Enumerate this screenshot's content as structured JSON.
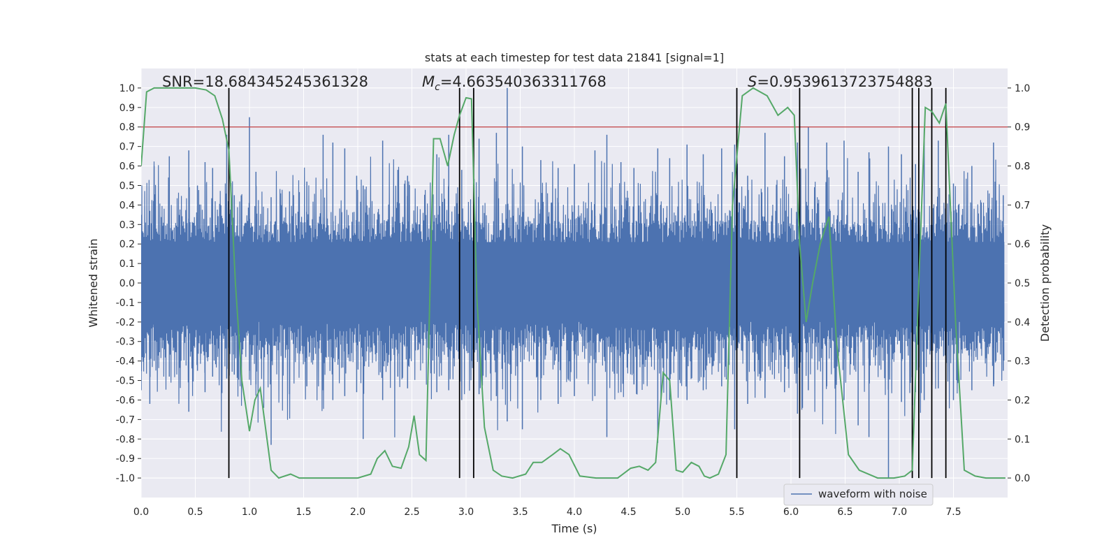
{
  "chart_data": {
    "type": "line",
    "title": "stats at each timestep for test data 21841 [signal=1]",
    "xlabel": "Time (s)",
    "ylabel_left": "Whitened strain",
    "ylabel_right": "Detection probability",
    "xlim": [
      0.0,
      8.0
    ],
    "ylim_left": [
      -1.1,
      1.1
    ],
    "ylim_right": [
      -0.05,
      1.05
    ],
    "x_ticks": [
      "0.0",
      "0.5",
      "1.0",
      "1.5",
      "2.0",
      "2.5",
      "3.0",
      "3.5",
      "4.0",
      "4.5",
      "5.0",
      "5.5",
      "6.0",
      "6.5",
      "7.0",
      "7.5"
    ],
    "y_ticks_left": [
      "1.0",
      "0.9",
      "0.8",
      "0.7",
      "0.6",
      "0.5",
      "0.4",
      "0.3",
      "0.2",
      "0.1",
      "0.0",
      "-0.1",
      "-0.2",
      "-0.3",
      "-0.4",
      "-0.5",
      "-0.6",
      "-0.7",
      "-0.8",
      "-0.9",
      "-1.0"
    ],
    "y_ticks_right": [
      "1.0",
      "0.9",
      "0.8",
      "0.7",
      "0.6",
      "0.5",
      "0.4",
      "0.3",
      "0.2",
      "0.1",
      "0.0"
    ],
    "grid": true,
    "legend_position": "bottom-right",
    "annotations": {
      "snr": "SNR=18.684345245361328",
      "mc_symbol": "M",
      "mc_sub": "c",
      "mc_value": "=4.663540363311768",
      "s_symbol": "S",
      "s_value": "=0.9539613723754883"
    },
    "threshold": {
      "value": 0.9,
      "axis": "right",
      "color": "#c44e52"
    },
    "vlines": [
      0.81,
      2.94,
      3.07,
      5.5,
      6.08,
      7.12,
      7.18,
      7.3,
      7.43
    ],
    "waveform": {
      "name": "waveform with noise",
      "color": "#4c72b0",
      "note": "dense noisy whitened strain; typical band about -0.4..0.4 with spikes",
      "spikes": [
        [
          0.0,
          0.35,
          -0.55
        ],
        [
          0.08,
          0.37,
          -0.62
        ],
        [
          0.12,
          0.6,
          -0.4
        ],
        [
          0.26,
          0.65,
          -0.48
        ],
        [
          0.44,
          0.68,
          -0.66
        ],
        [
          0.52,
          0.5,
          -0.45
        ],
        [
          0.59,
          0.62,
          -0.56
        ],
        [
          0.66,
          0.59,
          -0.48
        ],
        [
          0.79,
          0.76,
          -0.49
        ],
        [
          0.86,
          0.45,
          -0.47
        ],
        [
          1.0,
          0.85,
          -0.45
        ],
        [
          1.06,
          0.57,
          -0.52
        ],
        [
          1.2,
          0.44,
          -0.83
        ],
        [
          1.37,
          0.47,
          -0.57
        ],
        [
          1.53,
          0.52,
          -0.53
        ],
        [
          1.68,
          0.76,
          -0.55
        ],
        [
          1.77,
          0.72,
          -0.6
        ],
        [
          1.88,
          0.69,
          -0.58
        ],
        [
          1.99,
          0.55,
          -0.56
        ],
        [
          2.05,
          0.5,
          -0.8
        ],
        [
          2.23,
          0.73,
          -0.6
        ],
        [
          2.37,
          0.58,
          -0.48
        ],
        [
          2.46,
          0.55,
          -0.54
        ],
        [
          2.73,
          0.66,
          -0.56
        ],
        [
          2.84,
          0.76,
          -0.55
        ],
        [
          2.96,
          0.58,
          -0.6
        ],
        [
          3.12,
          0.74,
          -0.57
        ],
        [
          3.28,
          0.77,
          -0.58
        ],
        [
          3.38,
          1.0,
          -0.71
        ],
        [
          3.52,
          0.7,
          -0.75
        ],
        [
          3.69,
          0.63,
          -0.6
        ],
        [
          3.85,
          0.59,
          -0.62
        ],
        [
          4.0,
          0.61,
          -0.58
        ],
        [
          4.19,
          0.68,
          -0.58
        ],
        [
          4.3,
          0.76,
          -0.79
        ],
        [
          4.43,
          0.62,
          -0.56
        ],
        [
          4.55,
          0.59,
          -0.52
        ],
        [
          4.77,
          0.69,
          -0.82
        ],
        [
          4.88,
          0.64,
          -0.6
        ],
        [
          5.04,
          0.71,
          -0.6
        ],
        [
          5.19,
          0.66,
          -0.55
        ],
        [
          5.36,
          0.69,
          -0.53
        ],
        [
          5.48,
          0.71,
          -0.75
        ],
        [
          5.6,
          0.55,
          -0.62
        ],
        [
          5.76,
          0.77,
          -0.59
        ],
        [
          5.94,
          0.65,
          -0.56
        ],
        [
          6.06,
          0.72,
          -0.67
        ],
        [
          6.16,
          0.8,
          -0.55
        ],
        [
          6.33,
          0.72,
          -0.53
        ],
        [
          6.49,
          0.73,
          -0.6
        ],
        [
          6.62,
          0.57,
          -0.73
        ],
        [
          6.72,
          0.67,
          -0.79
        ],
        [
          6.9,
          0.7,
          -1.0
        ],
        [
          7.02,
          0.66,
          -0.61
        ],
        [
          7.15,
          0.61,
          -0.56
        ],
        [
          7.23,
          0.79,
          -0.6
        ],
        [
          7.36,
          0.73,
          -0.54
        ],
        [
          7.5,
          0.51,
          -0.6
        ],
        [
          7.67,
          0.6,
          -0.55
        ],
        [
          7.87,
          0.72,
          -0.53
        ],
        [
          7.96,
          0.45,
          -0.45
        ]
      ]
    },
    "detection_probability": {
      "color": "#55a868",
      "x": [
        0.0,
        0.05,
        0.12,
        0.2,
        0.3,
        0.4,
        0.5,
        0.6,
        0.68,
        0.75,
        0.81,
        0.87,
        0.93,
        1.0,
        1.05,
        1.1,
        1.2,
        1.27,
        1.38,
        1.46,
        1.55,
        1.7,
        1.85,
        2.0,
        2.12,
        2.18,
        2.25,
        2.32,
        2.4,
        2.47,
        2.52,
        2.57,
        2.63,
        2.7,
        2.76,
        2.83,
        2.89,
        2.94,
        3.0,
        3.05,
        3.1,
        3.17,
        3.25,
        3.33,
        3.43,
        3.55,
        3.62,
        3.7,
        3.8,
        3.87,
        3.95,
        4.05,
        4.2,
        4.4,
        4.52,
        4.6,
        4.68,
        4.75,
        4.82,
        4.88,
        4.94,
        5.0,
        5.08,
        5.15,
        5.2,
        5.25,
        5.33,
        5.4,
        5.46,
        5.55,
        5.65,
        5.78,
        5.88,
        5.97,
        6.03,
        6.08,
        6.14,
        6.2,
        6.27,
        6.35,
        6.42,
        6.53,
        6.63,
        6.8,
        6.95,
        7.05,
        7.12,
        7.18,
        7.24,
        7.3,
        7.37,
        7.43,
        7.52,
        7.6,
        7.7,
        7.8,
        7.98
      ],
      "y": [
        0.8,
        0.99,
        1.0,
        1.0,
        1.0,
        1.0,
        1.0,
        0.995,
        0.98,
        0.92,
        0.84,
        0.5,
        0.25,
        0.12,
        0.2,
        0.23,
        0.02,
        0.0,
        0.01,
        0.0,
        0.0,
        0.0,
        0.0,
        0.0,
        0.01,
        0.05,
        0.07,
        0.03,
        0.025,
        0.08,
        0.16,
        0.06,
        0.045,
        0.87,
        0.87,
        0.8,
        0.88,
        0.93,
        0.975,
        0.972,
        0.46,
        0.13,
        0.02,
        0.005,
        0.0,
        0.01,
        0.04,
        0.04,
        0.06,
        0.075,
        0.06,
        0.005,
        0.0,
        0.0,
        0.025,
        0.03,
        0.02,
        0.04,
        0.27,
        0.25,
        0.02,
        0.015,
        0.04,
        0.03,
        0.005,
        0.0,
        0.01,
        0.06,
        0.7,
        0.98,
        1.0,
        0.98,
        0.93,
        0.95,
        0.93,
        0.6,
        0.4,
        0.5,
        0.6,
        0.67,
        0.35,
        0.06,
        0.02,
        0.0,
        0.0,
        0.005,
        0.02,
        0.5,
        0.95,
        0.94,
        0.91,
        0.96,
        0.4,
        0.02,
        0.005,
        0.0,
        0.0
      ]
    }
  },
  "legend": {
    "label": "waveform with noise"
  }
}
